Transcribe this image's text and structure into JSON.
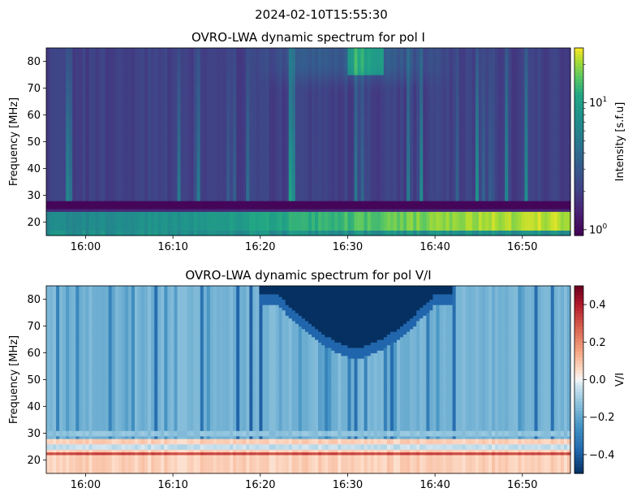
{
  "figure": {
    "suptitle": "2024-02-10T15:55:30"
  },
  "chart_data": [
    {
      "type": "heatmap",
      "title": "OVRO-LWA dynamic spectrum for pol I",
      "xlabel": "",
      "ylabel": "Frequency [MHz]",
      "x_ticks": [
        "16:00",
        "16:10",
        "16:20",
        "16:30",
        "16:40",
        "16:50"
      ],
      "x_tick_minutes": [
        0,
        10,
        20,
        30,
        40,
        50
      ],
      "x_range_minutes_after_16_00": [
        -4.5,
        55.5
      ],
      "y_ticks": [
        20,
        30,
        40,
        50,
        60,
        70,
        80
      ],
      "ylim": [
        15,
        85
      ],
      "colormap": "viridis",
      "color_scale": "log",
      "colorbar": {
        "label": "Intensity [s.f.u]",
        "ticks": [
          "10^0",
          "10^1"
        ],
        "tick_values": [
          1,
          10
        ],
        "range": [
          0.9,
          27
        ]
      },
      "features": {
        "rfi_band_low_mhz": [
          25,
          28
        ],
        "bright_band_mhz": [
          17,
          24
        ],
        "burst_region_minutes": [
          22,
          34
        ],
        "burst_region_freq_mhz": [
          70,
          85
        ]
      }
    },
    {
      "type": "heatmap",
      "title": "OVRO-LWA dynamic spectrum for pol V/I",
      "xlabel": "",
      "ylabel": "Frequency [MHz]",
      "x_ticks": [
        "16:00",
        "16:10",
        "16:20",
        "16:30",
        "16:40",
        "16:50"
      ],
      "x_tick_minutes": [
        0,
        10,
        20,
        30,
        40,
        50
      ],
      "x_range_minutes_after_16_00": [
        -4.5,
        55.5
      ],
      "y_ticks": [
        20,
        30,
        40,
        50,
        60,
        70,
        80
      ],
      "ylim": [
        15,
        85
      ],
      "colormap": "RdBu_r",
      "colorbar": {
        "label": "V/I",
        "ticks": [
          "0.4",
          "0.2",
          "0.0",
          "−0.2",
          "−0.4"
        ],
        "tick_values": [
          0.4,
          0.2,
          0.0,
          -0.2,
          -0.4
        ],
        "range": [
          -0.5,
          0.5
        ]
      },
      "features": {
        "strong_negative_region_minutes": [
          23,
          38
        ],
        "strong_negative_freq_mhz": [
          62,
          85
        ]
      }
    }
  ]
}
